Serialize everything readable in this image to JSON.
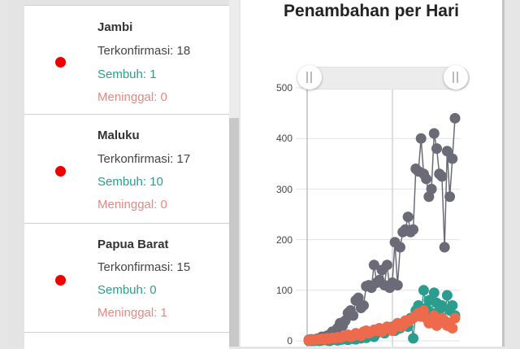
{
  "list": {
    "items": [
      {
        "name": "Jambi",
        "confirmed": "Terkonfirmasi: 18",
        "recovered": "Sembuh: 1",
        "deaths": "Meninggal: 0"
      },
      {
        "name": "Maluku",
        "confirmed": "Terkonfirmasi: 17",
        "recovered": "Sembuh: 10",
        "deaths": "Meninggal: 0"
      },
      {
        "name": "Papua Barat",
        "confirmed": "Terkonfirmasi: 15",
        "recovered": "Sembuh: 0",
        "deaths": "Meninggal: 1"
      }
    ],
    "dot_color": "#ee0000"
  },
  "chart": {
    "title": "Penambahan per Hari",
    "y_ticks": [
      "500",
      "400",
      "300",
      "200",
      "100",
      "0"
    ]
  },
  "chart_data": {
    "type": "line",
    "title": "Penambahan per Hari",
    "xlabel": "",
    "ylabel": "",
    "ylim": [
      0,
      500
    ],
    "grid": true,
    "series": [
      {
        "name": "Terkonfirmasi",
        "color": "#6b6b78",
        "values": [
          2,
          3,
          2,
          4,
          5,
          8,
          6,
          10,
          12,
          18,
          15,
          25,
          35,
          30,
          40,
          55,
          60,
          50,
          80,
          85,
          65,
          70,
          108,
          110,
          105,
          150,
          115,
          120,
          140,
          110,
          150,
          105,
          115,
          195,
          110,
          185,
          215,
          220,
          245,
          215,
          220,
          340,
          335,
          400,
          330,
          320,
          285,
          300,
          410,
          380,
          330,
          325,
          185,
          375,
          285,
          360,
          440
        ]
      },
      {
        "name": "Sembuh",
        "color": "#2a9d8f",
        "values": [
          0,
          0,
          0,
          1,
          0,
          1,
          2,
          1,
          0,
          2,
          3,
          1,
          2,
          3,
          4,
          2,
          5,
          4,
          3,
          6,
          5,
          8,
          6,
          10,
          12,
          8,
          15,
          18,
          20,
          15,
          25,
          22,
          28,
          20,
          30,
          25,
          30,
          35,
          28,
          45,
          5,
          60,
          70,
          50,
          100,
          65,
          80,
          55,
          95,
          75,
          60,
          70,
          40,
          90,
          60,
          70,
          50
        ]
      },
      {
        "name": "Meninggal",
        "color": "#ee6a4c",
        "values": [
          1,
          2,
          2,
          3,
          3,
          4,
          3,
          5,
          4,
          6,
          5,
          7,
          6,
          8,
          10,
          12,
          8,
          10,
          15,
          12,
          10,
          18,
          20,
          15,
          18,
          22,
          20,
          25,
          18,
          22,
          28,
          25,
          20,
          30,
          35,
          28,
          30,
          40,
          38,
          42,
          45,
          50,
          55,
          48,
          60,
          45,
          35,
          40,
          50,
          30,
          35,
          45,
          40,
          30,
          35,
          25,
          45
        ]
      }
    ]
  }
}
